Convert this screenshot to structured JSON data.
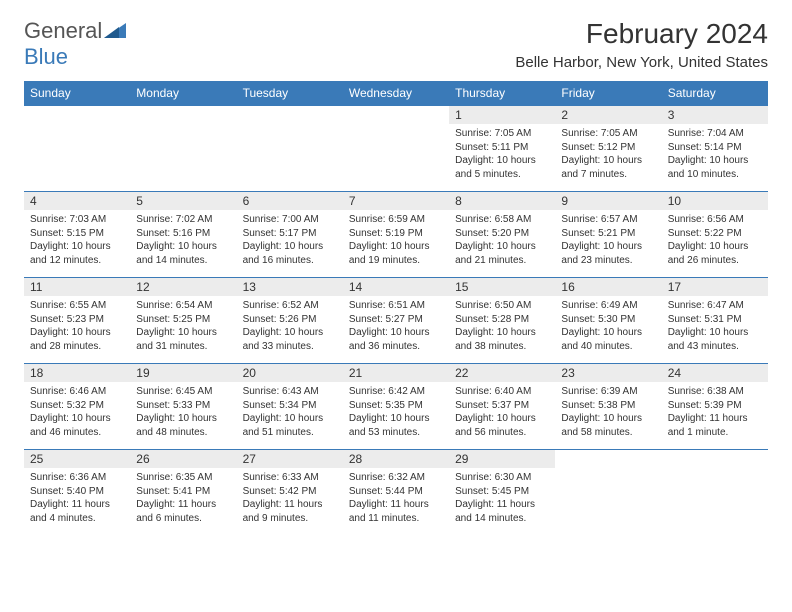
{
  "brand": {
    "part1": "General",
    "part2": "Blue"
  },
  "title": "February 2024",
  "location": "Belle Harbor, New York, United States",
  "colors": {
    "header_bg": "#3a7ab8",
    "header_text": "#ffffff",
    "daynum_bg": "#ececec",
    "text": "#333333",
    "border": "#3a7ab8",
    "brand_gray": "#555555",
    "brand_blue": "#3a7ab8"
  },
  "typography": {
    "title_size": 28,
    "location_size": 15,
    "header_cell_size": 12,
    "daynum_size": 12,
    "body_size": 10
  },
  "weekdays": [
    "Sunday",
    "Monday",
    "Tuesday",
    "Wednesday",
    "Thursday",
    "Friday",
    "Saturday"
  ],
  "weeks": [
    [
      null,
      null,
      null,
      null,
      {
        "n": "1",
        "sr": "Sunrise: 7:05 AM",
        "ss": "Sunset: 5:11 PM",
        "dl": "Daylight: 10 hours and 5 minutes."
      },
      {
        "n": "2",
        "sr": "Sunrise: 7:05 AM",
        "ss": "Sunset: 5:12 PM",
        "dl": "Daylight: 10 hours and 7 minutes."
      },
      {
        "n": "3",
        "sr": "Sunrise: 7:04 AM",
        "ss": "Sunset: 5:14 PM",
        "dl": "Daylight: 10 hours and 10 minutes."
      }
    ],
    [
      {
        "n": "4",
        "sr": "Sunrise: 7:03 AM",
        "ss": "Sunset: 5:15 PM",
        "dl": "Daylight: 10 hours and 12 minutes."
      },
      {
        "n": "5",
        "sr": "Sunrise: 7:02 AM",
        "ss": "Sunset: 5:16 PM",
        "dl": "Daylight: 10 hours and 14 minutes."
      },
      {
        "n": "6",
        "sr": "Sunrise: 7:00 AM",
        "ss": "Sunset: 5:17 PM",
        "dl": "Daylight: 10 hours and 16 minutes."
      },
      {
        "n": "7",
        "sr": "Sunrise: 6:59 AM",
        "ss": "Sunset: 5:19 PM",
        "dl": "Daylight: 10 hours and 19 minutes."
      },
      {
        "n": "8",
        "sr": "Sunrise: 6:58 AM",
        "ss": "Sunset: 5:20 PM",
        "dl": "Daylight: 10 hours and 21 minutes."
      },
      {
        "n": "9",
        "sr": "Sunrise: 6:57 AM",
        "ss": "Sunset: 5:21 PM",
        "dl": "Daylight: 10 hours and 23 minutes."
      },
      {
        "n": "10",
        "sr": "Sunrise: 6:56 AM",
        "ss": "Sunset: 5:22 PM",
        "dl": "Daylight: 10 hours and 26 minutes."
      }
    ],
    [
      {
        "n": "11",
        "sr": "Sunrise: 6:55 AM",
        "ss": "Sunset: 5:23 PM",
        "dl": "Daylight: 10 hours and 28 minutes."
      },
      {
        "n": "12",
        "sr": "Sunrise: 6:54 AM",
        "ss": "Sunset: 5:25 PM",
        "dl": "Daylight: 10 hours and 31 minutes."
      },
      {
        "n": "13",
        "sr": "Sunrise: 6:52 AM",
        "ss": "Sunset: 5:26 PM",
        "dl": "Daylight: 10 hours and 33 minutes."
      },
      {
        "n": "14",
        "sr": "Sunrise: 6:51 AM",
        "ss": "Sunset: 5:27 PM",
        "dl": "Daylight: 10 hours and 36 minutes."
      },
      {
        "n": "15",
        "sr": "Sunrise: 6:50 AM",
        "ss": "Sunset: 5:28 PM",
        "dl": "Daylight: 10 hours and 38 minutes."
      },
      {
        "n": "16",
        "sr": "Sunrise: 6:49 AM",
        "ss": "Sunset: 5:30 PM",
        "dl": "Daylight: 10 hours and 40 minutes."
      },
      {
        "n": "17",
        "sr": "Sunrise: 6:47 AM",
        "ss": "Sunset: 5:31 PM",
        "dl": "Daylight: 10 hours and 43 minutes."
      }
    ],
    [
      {
        "n": "18",
        "sr": "Sunrise: 6:46 AM",
        "ss": "Sunset: 5:32 PM",
        "dl": "Daylight: 10 hours and 46 minutes."
      },
      {
        "n": "19",
        "sr": "Sunrise: 6:45 AM",
        "ss": "Sunset: 5:33 PM",
        "dl": "Daylight: 10 hours and 48 minutes."
      },
      {
        "n": "20",
        "sr": "Sunrise: 6:43 AM",
        "ss": "Sunset: 5:34 PM",
        "dl": "Daylight: 10 hours and 51 minutes."
      },
      {
        "n": "21",
        "sr": "Sunrise: 6:42 AM",
        "ss": "Sunset: 5:35 PM",
        "dl": "Daylight: 10 hours and 53 minutes."
      },
      {
        "n": "22",
        "sr": "Sunrise: 6:40 AM",
        "ss": "Sunset: 5:37 PM",
        "dl": "Daylight: 10 hours and 56 minutes."
      },
      {
        "n": "23",
        "sr": "Sunrise: 6:39 AM",
        "ss": "Sunset: 5:38 PM",
        "dl": "Daylight: 10 hours and 58 minutes."
      },
      {
        "n": "24",
        "sr": "Sunrise: 6:38 AM",
        "ss": "Sunset: 5:39 PM",
        "dl": "Daylight: 11 hours and 1 minute."
      }
    ],
    [
      {
        "n": "25",
        "sr": "Sunrise: 6:36 AM",
        "ss": "Sunset: 5:40 PM",
        "dl": "Daylight: 11 hours and 4 minutes."
      },
      {
        "n": "26",
        "sr": "Sunrise: 6:35 AM",
        "ss": "Sunset: 5:41 PM",
        "dl": "Daylight: 11 hours and 6 minutes."
      },
      {
        "n": "27",
        "sr": "Sunrise: 6:33 AM",
        "ss": "Sunset: 5:42 PM",
        "dl": "Daylight: 11 hours and 9 minutes."
      },
      {
        "n": "28",
        "sr": "Sunrise: 6:32 AM",
        "ss": "Sunset: 5:44 PM",
        "dl": "Daylight: 11 hours and 11 minutes."
      },
      {
        "n": "29",
        "sr": "Sunrise: 6:30 AM",
        "ss": "Sunset: 5:45 PM",
        "dl": "Daylight: 11 hours and 14 minutes."
      },
      null,
      null
    ]
  ]
}
